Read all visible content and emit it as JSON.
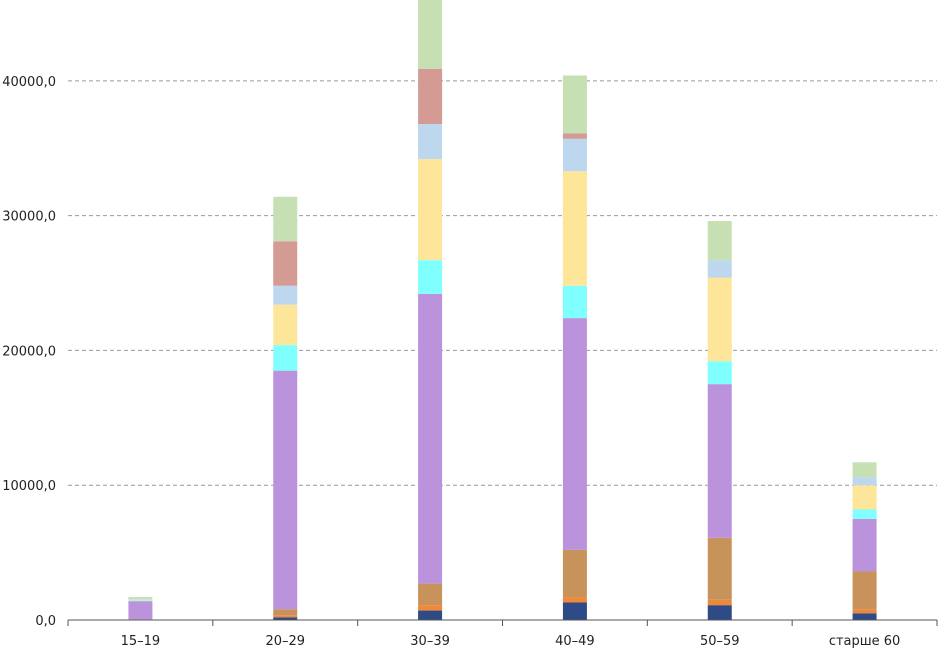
{
  "chart_data": {
    "type": "bar",
    "stacked": true,
    "title": "",
    "xlabel": "",
    "ylabel": "",
    "categories": [
      "15–19",
      "20–29",
      "30–39",
      "40–49",
      "50–59",
      "старше 60"
    ],
    "ylim": [
      0,
      46000
    ],
    "yticks": [
      0,
      10000,
      20000,
      30000,
      40000
    ],
    "ytick_labels": [
      "0,0",
      "10000,0",
      "20000,0",
      "30000,0",
      "40000,0"
    ],
    "grid": true,
    "legend": "none",
    "series": [
      {
        "color": "#2e4a87",
        "values": [
          0,
          200,
          700,
          1300,
          1100,
          500
        ]
      },
      {
        "color": "#f0883a",
        "values": [
          0,
          150,
          400,
          400,
          400,
          300
        ]
      },
      {
        "color": "#c8935a",
        "values": [
          50,
          450,
          1600,
          3500,
          4600,
          2800
        ]
      },
      {
        "color": "#bb93dd",
        "values": [
          1350,
          17700,
          21500,
          17200,
          11400,
          3900
        ]
      },
      {
        "color": "#80ffff",
        "values": [
          50,
          1900,
          2500,
          2400,
          1700,
          700
        ]
      },
      {
        "color": "#fde59a",
        "values": [
          50,
          3000,
          7500,
          8500,
          6200,
          1800
        ]
      },
      {
        "color": "#bdd7ee",
        "values": [
          50,
          1400,
          2600,
          2400,
          1300,
          600
        ]
      },
      {
        "color": "#d49a94",
        "values": [
          0,
          3300,
          4100,
          400,
          0,
          0
        ]
      },
      {
        "color": "#c6e0b4",
        "values": [
          150,
          3300,
          5100,
          4300,
          2900,
          1100
        ]
      }
    ]
  }
}
